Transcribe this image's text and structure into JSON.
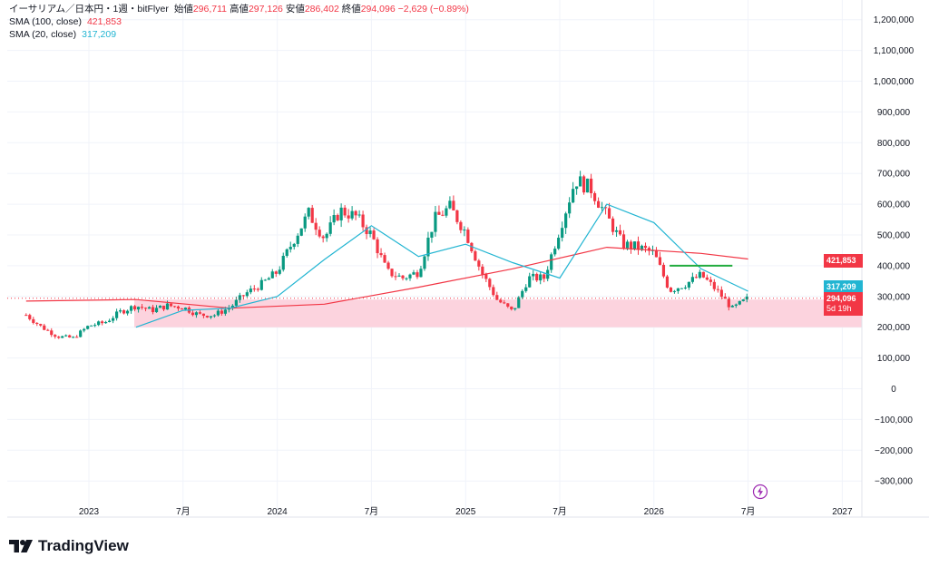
{
  "legend": {
    "title": "イーサリアム／日本円・1週・bitFlyer",
    "open_label": "始値",
    "open": "296,711",
    "high_label": "高値",
    "high": "297,126",
    "low_label": "安値",
    "low": "286,402",
    "close_label": "終値",
    "close": "294,096",
    "change": "−2,629 (−0.89%)",
    "sma100_label": "SMA (100, close)",
    "sma100_value": "421,853",
    "sma20_label": "SMA (20, close)",
    "sma20_value": "317,209"
  },
  "tags": {
    "sma100": "421,853",
    "sma20": "317,209",
    "price": "294,096",
    "countdown": "5d 19h"
  },
  "brand": {
    "name": "TradingView"
  },
  "colors": {
    "up": "#089981",
    "down": "#f23645",
    "sma100": "#f23645",
    "sma20": "#22b5d2",
    "zone": "#fcd3de",
    "hline": "#22ab3e"
  },
  "chart_data": {
    "type": "candlestick",
    "y_axis_ticks": [
      1200000,
      1100000,
      1000000,
      900000,
      800000,
      700000,
      600000,
      500000,
      400000,
      300000,
      200000,
      100000,
      0,
      -100000,
      -200000,
      -300000
    ],
    "y_axis_labels": [
      "1,200,000",
      "1,100,000",
      "1,000,000",
      "900,000",
      "800,000",
      "700,000",
      "600,000",
      "500,000",
      "400,000",
      "300,000",
      "200,000",
      "100,000",
      "0",
      "−100,000",
      "−200,000",
      "−300,000"
    ],
    "x_axis_labels": [
      "2023",
      "7月",
      "2024",
      "7月",
      "2025",
      "7月",
      "2026",
      "7月",
      "2027"
    ],
    "x_axis_label_dates": [
      "2023-01",
      "2023-07",
      "2024-01",
      "2024-07",
      "2025-01",
      "2025-07",
      "2026-01",
      "2026-07",
      "2027-01"
    ],
    "price_path_monthly": [
      {
        "date": "2022-09",
        "price": 240000
      },
      {
        "date": "2022-10",
        "price": 200000
      },
      {
        "date": "2022-11",
        "price": 170000
      },
      {
        "date": "2022-12",
        "price": 165000
      },
      {
        "date": "2023-01",
        "price": 205000
      },
      {
        "date": "2023-02",
        "price": 215000
      },
      {
        "date": "2023-03",
        "price": 250000
      },
      {
        "date": "2023-04",
        "price": 270000
      },
      {
        "date": "2023-05",
        "price": 255000
      },
      {
        "date": "2023-06",
        "price": 270000
      },
      {
        "date": "2023-07",
        "price": 265000
      },
      {
        "date": "2023-08",
        "price": 240000
      },
      {
        "date": "2023-09",
        "price": 240000
      },
      {
        "date": "2023-10",
        "price": 265000
      },
      {
        "date": "2023-11",
        "price": 310000
      },
      {
        "date": "2023-12",
        "price": 340000
      },
      {
        "date": "2024-01",
        "price": 380000
      },
      {
        "date": "2024-02",
        "price": 480000
      },
      {
        "date": "2024-03",
        "price": 570000
      },
      {
        "date": "2024-04",
        "price": 490000
      },
      {
        "date": "2024-05",
        "price": 580000
      },
      {
        "date": "2024-06",
        "price": 560000
      },
      {
        "date": "2024-07",
        "price": 500000
      },
      {
        "date": "2024-08",
        "price": 380000
      },
      {
        "date": "2024-09",
        "price": 360000
      },
      {
        "date": "2024-10",
        "price": 380000
      },
      {
        "date": "2024-11",
        "price": 550000
      },
      {
        "date": "2024-12",
        "price": 590000
      },
      {
        "date": "2025-01",
        "price": 510000
      },
      {
        "date": "2025-02",
        "price": 380000
      },
      {
        "date": "2025-03",
        "price": 290000
      },
      {
        "date": "2025-04",
        "price": 250000
      },
      {
        "date": "2025-05",
        "price": 360000
      },
      {
        "date": "2025-06",
        "price": 360000
      },
      {
        "date": "2025-07",
        "price": 520000
      },
      {
        "date": "2025-08",
        "price": 680000
      },
      {
        "date": "2025-09",
        "price": 650000
      },
      {
        "date": "2025-10",
        "price": 560000
      },
      {
        "date": "2025-11",
        "price": 470000
      },
      {
        "date": "2025-12",
        "price": 460000
      },
      {
        "date": "2026-01",
        "price": 440000
      },
      {
        "date": "2026-02",
        "price": 320000
      },
      {
        "date": "2026-03",
        "price": 340000
      },
      {
        "date": "2026-04",
        "price": 370000
      },
      {
        "date": "2026-05",
        "price": 320000
      },
      {
        "date": "2026-06",
        "price": 260000
      },
      {
        "date": "2026-07",
        "price": 294096
      }
    ],
    "sma20": [
      {
        "date": "2023-04",
        "value": 200000
      },
      {
        "date": "2023-07",
        "value": 255000
      },
      {
        "date": "2023-10",
        "value": 262000
      },
      {
        "date": "2024-01",
        "value": 300000
      },
      {
        "date": "2024-04",
        "value": 420000
      },
      {
        "date": "2024-07",
        "value": 530000
      },
      {
        "date": "2024-10",
        "value": 430000
      },
      {
        "date": "2025-01",
        "value": 470000
      },
      {
        "date": "2025-04",
        "value": 410000
      },
      {
        "date": "2025-07",
        "value": 360000
      },
      {
        "date": "2025-10",
        "value": 600000
      },
      {
        "date": "2026-01",
        "value": 540000
      },
      {
        "date": "2026-04",
        "value": 390000
      },
      {
        "date": "2026-07",
        "value": 317209
      }
    ],
    "sma100": [
      {
        "date": "2022-09",
        "value": 285000
      },
      {
        "date": "2023-04",
        "value": 290000
      },
      {
        "date": "2023-10",
        "value": 262000
      },
      {
        "date": "2024-04",
        "value": 275000
      },
      {
        "date": "2024-10",
        "value": 330000
      },
      {
        "date": "2025-04",
        "value": 390000
      },
      {
        "date": "2025-10",
        "value": 460000
      },
      {
        "date": "2026-04",
        "value": 440000
      },
      {
        "date": "2026-07",
        "value": 421853
      }
    ],
    "zone": {
      "from": 200000,
      "to": 290000
    },
    "hline": {
      "price": 400000,
      "from": "2026-02",
      "to": "2026-06"
    },
    "grid": true
  }
}
